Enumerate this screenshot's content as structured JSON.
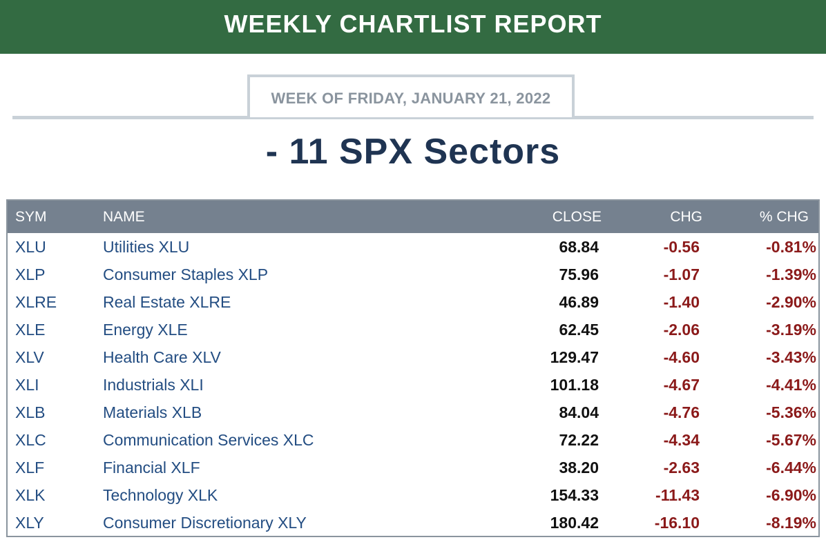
{
  "header": {
    "title": "WEEKLY CHARTLIST REPORT",
    "week": "WEEK OF FRIDAY, JANUARY 21, 2022",
    "page_title": "- 11 SPX Sectors"
  },
  "table": {
    "columns": {
      "sym": "SYM",
      "name": "NAME",
      "close": "CLOSE",
      "chg": "CHG",
      "pct": "% CHG"
    },
    "rows": [
      {
        "sym": "XLU",
        "name": "Utilities XLU",
        "close": "68.84",
        "chg": "-0.56",
        "pct": "-0.81%"
      },
      {
        "sym": "XLP",
        "name": "Consumer Staples XLP",
        "close": "75.96",
        "chg": "-1.07",
        "pct": "-1.39%"
      },
      {
        "sym": "XLRE",
        "name": "Real Estate XLRE",
        "close": "46.89",
        "chg": "-1.40",
        "pct": "-2.90%"
      },
      {
        "sym": "XLE",
        "name": "Energy XLE",
        "close": "62.45",
        "chg": "-2.06",
        "pct": "-3.19%"
      },
      {
        "sym": "XLV",
        "name": "Health Care XLV",
        "close": "129.47",
        "chg": "-4.60",
        "pct": "-3.43%"
      },
      {
        "sym": "XLI",
        "name": "Industrials XLI",
        "close": "101.18",
        "chg": "-4.67",
        "pct": "-4.41%"
      },
      {
        "sym": "XLB",
        "name": "Materials XLB",
        "close": "84.04",
        "chg": "-4.76",
        "pct": "-5.36%"
      },
      {
        "sym": "XLC",
        "name": "Communication Services XLC",
        "close": "72.22",
        "chg": "-4.34",
        "pct": "-5.67%"
      },
      {
        "sym": "XLF",
        "name": "Financial XLF",
        "close": "38.20",
        "chg": "-2.63",
        "pct": "-6.44%"
      },
      {
        "sym": "XLK",
        "name": "Technology XLK",
        "close": "154.33",
        "chg": "-11.43",
        "pct": "-6.90%"
      },
      {
        "sym": "XLY",
        "name": "Consumer Discretionary XLY",
        "close": "180.42",
        "chg": "-16.10",
        "pct": "-8.19%"
      }
    ]
  },
  "colors": {
    "banner": "#336b42",
    "header_row": "#75818f",
    "link": "#234d82",
    "negative": "#8b1a1a"
  }
}
